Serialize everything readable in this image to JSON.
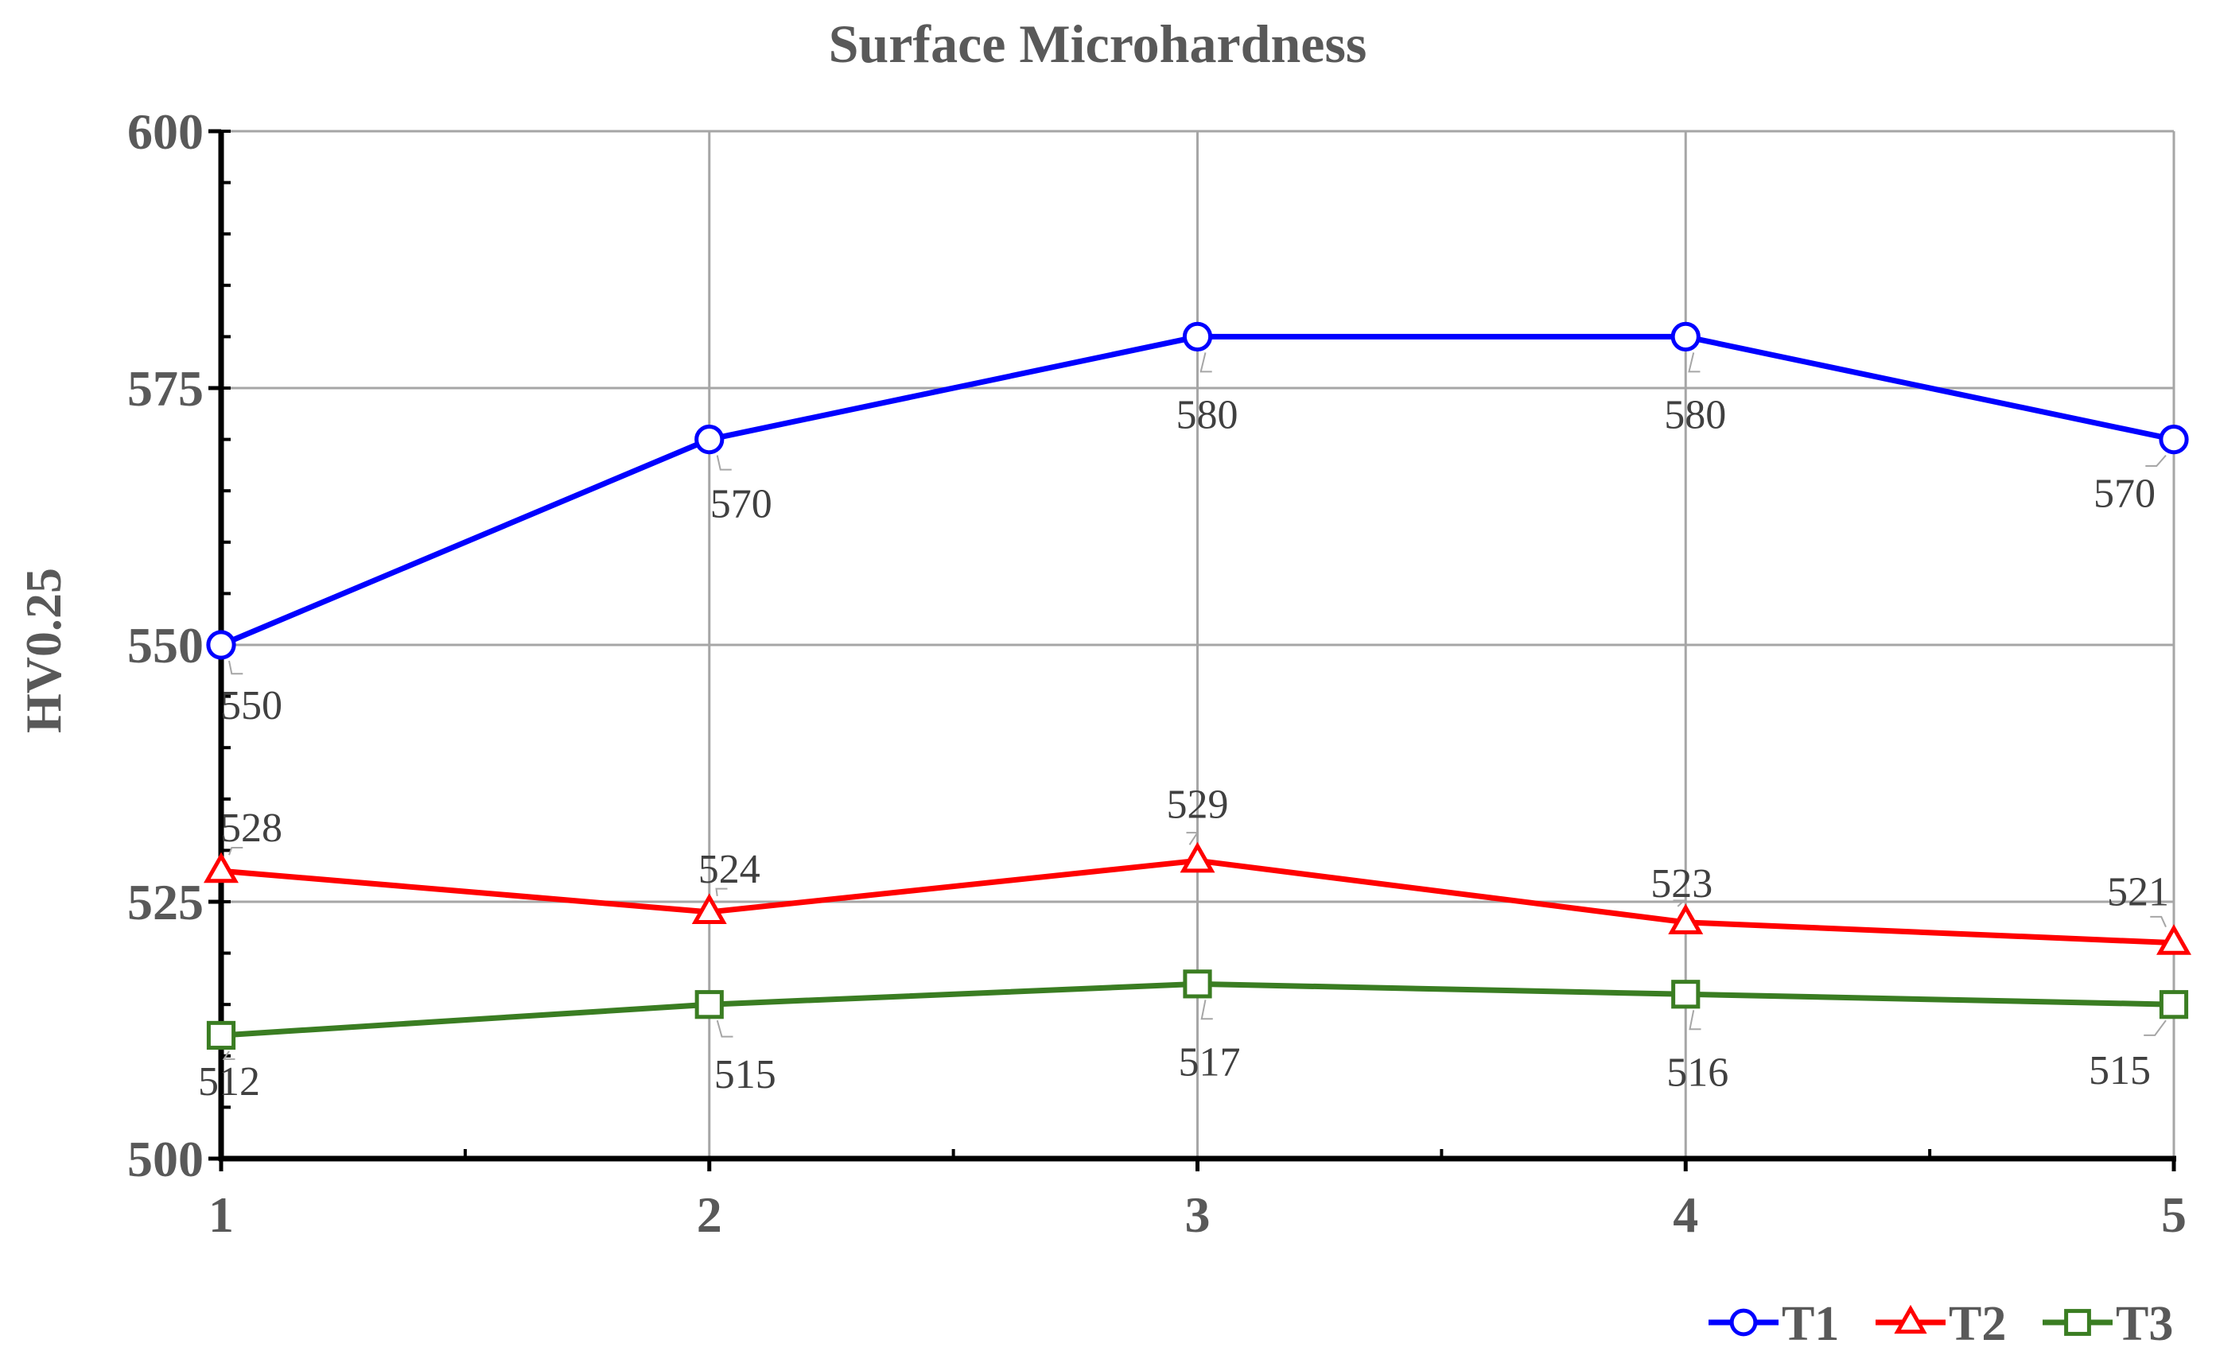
{
  "chart_data": {
    "type": "line",
    "title": "Surface Microhardness",
    "xlabel": "",
    "ylabel": "HV0.25",
    "categories": [
      "1",
      "2",
      "3",
      "4",
      "5"
    ],
    "x": [
      1,
      2,
      3,
      4,
      5
    ],
    "ylim": [
      500,
      600
    ],
    "yticks": [
      "500",
      "525",
      "550",
      "575",
      "600"
    ],
    "grid": true,
    "legend_position": "bottom-right",
    "series": [
      {
        "name": "T1",
        "values": [
          550,
          570,
          580,
          580,
          570
        ],
        "color": "#0000ff",
        "marker": "circle",
        "labels": [
          "550",
          "570",
          "580",
          "580",
          "570"
        ]
      },
      {
        "name": "T2",
        "values": [
          528,
          524,
          529,
          523,
          521
        ],
        "color": "#ff0000",
        "marker": "triangle",
        "labels": [
          "528",
          "524",
          "529",
          "523",
          "521"
        ]
      },
      {
        "name": "T3",
        "values": [
          512,
          515,
          517,
          516,
          515
        ],
        "color": "#3a7d22",
        "marker": "square",
        "labels": [
          "512",
          "515",
          "517",
          "516",
          "515"
        ]
      }
    ]
  }
}
